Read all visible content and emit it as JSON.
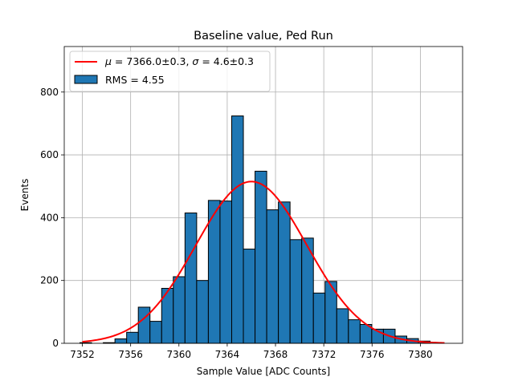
{
  "chart_data": {
    "type": "bar",
    "title": "Baseline value, Ped Run",
    "xlabel": "Sample Value [ADC Counts]",
    "ylabel": "Events",
    "xlim": [
      7350.5,
      7383.5
    ],
    "ylim": [
      0,
      945
    ],
    "x_ticks": [
      7352,
      7356,
      7360,
      7364,
      7368,
      7372,
      7376,
      7380
    ],
    "y_ticks": [
      0,
      200,
      400,
      600,
      800
    ],
    "grid": true,
    "legend_position": "top-left",
    "histogram": {
      "name": "RMS = 4.55",
      "color": "#1f77b4",
      "edge_color": "#000000",
      "bin_start": 7351.8,
      "bin_width": 0.967,
      "values": [
        2,
        0,
        2,
        14,
        35,
        115,
        70,
        175,
        212,
        415,
        200,
        455,
        453,
        724,
        300,
        548,
        425,
        450,
        330,
        335,
        160,
        197,
        110,
        75,
        60,
        45,
        45,
        23,
        15,
        7
      ]
    },
    "fit": {
      "type": "gaussian",
      "label": "$\\mu = 7366.0{\\pm}0.3$, $\\sigma = 4.6{\\pm}0.3$",
      "label_mu": "μ",
      "label_text_mu": " = 7366.0±0.3, ",
      "label_sigma": "σ",
      "label_text_sigma": " = 4.6±0.3",
      "mu": 7366.0,
      "sigma": 4.6,
      "amplitude": 515,
      "x_range": [
        7352,
        7382
      ],
      "color": "#ff0000"
    }
  }
}
